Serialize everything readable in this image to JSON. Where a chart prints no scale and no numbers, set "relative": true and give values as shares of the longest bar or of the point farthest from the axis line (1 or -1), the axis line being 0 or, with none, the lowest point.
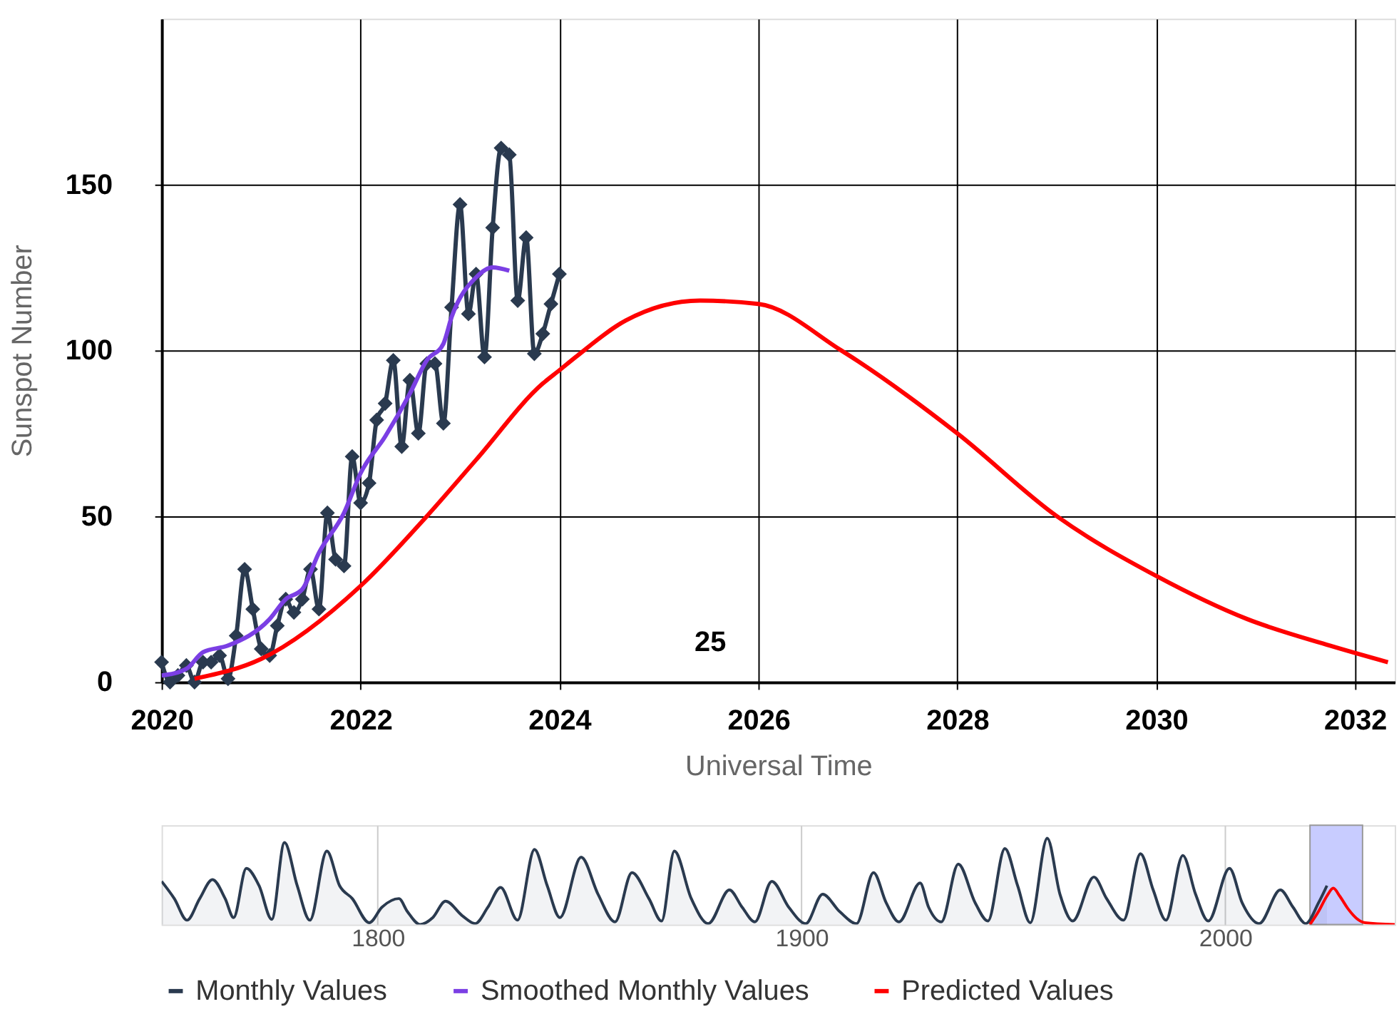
{
  "chart_data": [
    {
      "type": "line",
      "xlabel": "Universal Time",
      "ylabel": "Sunspot Number",
      "xlim": [
        "2020-01-01",
        "2032-05-26"
      ],
      "xticks": [
        "2020",
        "2022",
        "2024",
        "2026",
        "2028",
        "2030",
        "2032"
      ],
      "ylim": [
        0,
        200
      ],
      "yticks": [
        0,
        50,
        100,
        150
      ],
      "grid": true,
      "legend": "bottom",
      "line_style": "solid",
      "annotations": [
        "25"
      ],
      "series": [
        {
          "name": "Monthly Values",
          "color": "#2a3a4f",
          "marker": "diamond",
          "x": [
            "2020-01",
            "2020-02",
            "2020-03",
            "2020-04",
            "2020-05",
            "2020-06",
            "2020-07",
            "2020-08",
            "2020-09",
            "2020-10",
            "2020-11",
            "2020-12",
            "2021-01",
            "2021-02",
            "2021-03",
            "2021-04",
            "2021-05",
            "2021-06",
            "2021-07",
            "2021-08",
            "2021-09",
            "2021-10",
            "2021-11",
            "2021-12",
            "2022-01",
            "2022-02",
            "2022-03",
            "2022-04",
            "2022-05",
            "2022-06",
            "2022-07",
            "2022-08",
            "2022-09",
            "2022-10",
            "2022-11",
            "2022-12",
            "2023-01",
            "2023-02",
            "2023-03",
            "2023-04",
            "2023-05",
            "2023-06",
            "2023-07",
            "2023-08",
            "2023-09",
            "2023-10",
            "2023-11",
            "2023-12",
            "2024-01"
          ],
          "values": [
            6,
            0,
            2,
            5,
            0,
            6,
            6,
            8,
            1,
            14,
            34,
            22,
            10,
            8,
            17,
            25,
            21,
            25,
            34,
            22,
            51,
            37,
            35,
            68,
            54,
            60,
            79,
            84,
            97,
            71,
            91,
            75,
            96,
            96,
            78,
            113,
            144,
            111,
            123,
            98,
            137,
            161,
            159,
            115,
            134,
            99,
            105,
            114,
            123
          ]
        },
        {
          "name": "Smoothed Monthly Values",
          "color": "#7b3fe4",
          "marker": "none",
          "x": [
            "2020-01",
            "2020-04",
            "2020-06",
            "2020-09",
            "2021-02",
            "2021-04",
            "2021-06",
            "2021-08",
            "2021-11",
            "2022-01",
            "2022-04",
            "2022-07",
            "2022-09",
            "2022-11",
            "2022-12",
            "2023-03",
            "2023-05",
            "2023-07"
          ],
          "values": [
            2,
            4,
            9,
            11,
            19,
            25,
            28,
            39,
            51,
            63,
            74,
            87,
            97,
            102,
            110,
            122,
            125,
            124
          ]
        },
        {
          "name": "Predicted Values",
          "color": "#ff0000",
          "marker": "none",
          "x": [
            "2020-05",
            "2021-01",
            "2022-01",
            "2022-09",
            "2023-03",
            "2023-11",
            "2024-01",
            "2024-03",
            "2024-09",
            "2025-06",
            "2026-01",
            "2026-11",
            "2028-01",
            "2029-01",
            "2030-01",
            "2030-12",
            "2031-10",
            "2032-05"
          ],
          "values": [
            1,
            7,
            29,
            50,
            67,
            90,
            94,
            98,
            109,
            115,
            114,
            100,
            75,
            50,
            32,
            19,
            11,
            6
          ]
        }
      ]
    },
    {
      "type": "line",
      "relative": true,
      "xlim": [
        1749,
        2040
      ],
      "xticks": [
        1800,
        1900,
        2000
      ],
      "grid": "x",
      "tick_labels": "x",
      "bands": [
        {
          "axis": "x",
          "from": 2020,
          "to": 2032.4,
          "color": "#c8ccff"
        }
      ],
      "series": [
        {
          "type": "area",
          "color": "#2a3a4f",
          "x": [
            1749,
            1752,
            1755,
            1758,
            1761,
            1764,
            1766,
            1769,
            1772,
            1775,
            1778,
            1781,
            1784,
            1788,
            1791,
            1794,
            1798,
            1801,
            1805,
            1807,
            1810,
            1813,
            1816,
            1820,
            1823,
            1826,
            1829,
            1833,
            1837,
            1840,
            1843,
            1848,
            1852,
            1856,
            1860,
            1864,
            1867,
            1870,
            1874,
            1878,
            1883,
            1886,
            1889,
            1893,
            1897,
            1901,
            1905,
            1909,
            1913,
            1917,
            1920,
            1923,
            1928,
            1930,
            1933,
            1937,
            1941,
            1944,
            1948,
            1951,
            1954,
            1958,
            1961,
            1964,
            1969,
            1972,
            1976,
            1980,
            1983,
            1986,
            1990,
            1993,
            1996,
            2001,
            2004,
            2008,
            2013,
            2016,
            2019,
            2022,
            2024
          ],
          "values": [
            0.5,
            0.3,
            0.05,
            0.3,
            0.52,
            0.3,
            0.08,
            0.65,
            0.45,
            0.06,
            0.95,
            0.45,
            0.05,
            0.85,
            0.45,
            0.3,
            0.02,
            0.2,
            0.3,
            0.15,
            0.0,
            0.08,
            0.27,
            0.1,
            0.01,
            0.2,
            0.43,
            0.05,
            0.87,
            0.45,
            0.08,
            0.78,
            0.35,
            0.03,
            0.6,
            0.3,
            0.04,
            0.85,
            0.3,
            0.01,
            0.4,
            0.2,
            0.03,
            0.5,
            0.2,
            0.01,
            0.35,
            0.15,
            0.01,
            0.6,
            0.25,
            0.03,
            0.48,
            0.2,
            0.03,
            0.7,
            0.25,
            0.04,
            0.88,
            0.45,
            0.02,
            1.0,
            0.35,
            0.04,
            0.55,
            0.3,
            0.05,
            0.82,
            0.4,
            0.05,
            0.8,
            0.35,
            0.04,
            0.65,
            0.25,
            0.01,
            0.4,
            0.2,
            0.01,
            0.25,
            0.45
          ]
        },
        {
          "type": "line",
          "color": "#ff0000",
          "x": [
            2020,
            2022,
            2024,
            2025.5,
            2027,
            2029,
            2031,
            2033,
            2040
          ],
          "values": [
            0,
            0.15,
            0.33,
            0.42,
            0.33,
            0.18,
            0.07,
            0.02,
            0
          ]
        }
      ]
    }
  ]
}
